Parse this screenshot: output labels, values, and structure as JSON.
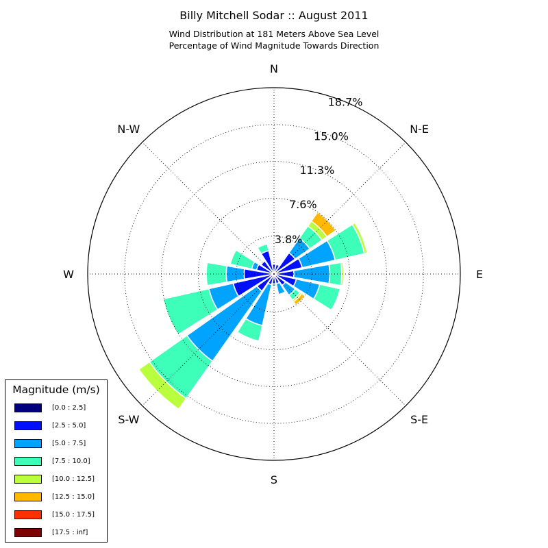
{
  "chart_data": {
    "type": "windrose",
    "title": "Billy Mitchell Sodar :: August 2011",
    "subtitle_lines": [
      "Wind Distribution at 181 Meters Above Sea Level",
      "Percentage of Wind Magnitude Towards Direction"
    ],
    "direction_labels": [
      "N",
      "N-E",
      "E",
      "S-E",
      "S",
      "S-W",
      "W",
      "N-W"
    ],
    "ring_labels": [
      "3.8%",
      "7.6%",
      "11.3%",
      "15.0%",
      "18.7%"
    ],
    "ring_values": [
      3.8,
      7.6,
      11.3,
      15.0,
      18.7
    ],
    "r_max": 18.7,
    "legend_title": "Magnitude (m/s)",
    "bins": [
      {
        "label": "[0.0 : 2.5]",
        "color": "#00007f"
      },
      {
        "label": "[2.5 : 5.0]",
        "color": "#0010ff"
      },
      {
        "label": "[5.0 : 7.5]",
        "color": "#00a4ff"
      },
      {
        "label": "[7.5 : 10.0]",
        "color": "#3dffb9"
      },
      {
        "label": "[10.0 : 12.5]",
        "color": "#b9ff3d"
      },
      {
        "label": "[12.5 : 15.0]",
        "color": "#ffb900"
      },
      {
        "label": "[15.0 : 17.5]",
        "color": "#ff3000"
      },
      {
        "label": "[17.5 : inf]",
        "color": "#7f0000"
      }
    ],
    "directions_deg": [
      0,
      22.5,
      45,
      67.5,
      90,
      112.5,
      135,
      157.5,
      180,
      202.5,
      225,
      247.5,
      270,
      292.5,
      315,
      337.5
    ],
    "cumulative_pct": [
      [
        0.15,
        1.0,
        1.0,
        1.05,
        1.05,
        1.05,
        1.05,
        1.05
      ],
      [
        0.3,
        1.0,
        1.0,
        1.05,
        1.05,
        1.05,
        1.05,
        1.05
      ],
      [
        0.3,
        2.6,
        4.4,
        5.9,
        6.5,
        7.6,
        7.6,
        7.6
      ],
      [
        0.3,
        2.9,
        6.3,
        9.3,
        9.6,
        9.6,
        9.6,
        9.6
      ],
      [
        0.3,
        2.0,
        5.6,
        6.8,
        7.0,
        7.0,
        7.0,
        7.0
      ],
      [
        0.3,
        2.3,
        4.7,
        6.8,
        6.8,
        6.8,
        6.8,
        6.8
      ],
      [
        0.3,
        1.4,
        2.6,
        3.2,
        3.4,
        3.8,
        3.8,
        3.8
      ],
      [
        0.3,
        1.0,
        2.1,
        2.1,
        2.1,
        2.1,
        2.1,
        2.1
      ],
      [
        0.3,
        1.0,
        1.2,
        1.2,
        1.2,
        1.2,
        1.2,
        1.2
      ],
      [
        0.3,
        1.1,
        5.3,
        6.9,
        6.9,
        6.9,
        6.9,
        6.9
      ],
      [
        0.3,
        2.1,
        10.7,
        15.3,
        16.6,
        16.6,
        16.6,
        16.6
      ],
      [
        0.3,
        4.2,
        6.7,
        11.4,
        11.4,
        11.4,
        11.4,
        11.4
      ],
      [
        0.3,
        3.0,
        4.8,
        6.8,
        6.8,
        6.8,
        6.8,
        6.8
      ],
      [
        0.3,
        1.8,
        2.3,
        4.5,
        4.5,
        4.5,
        4.5,
        4.5
      ],
      [
        0.3,
        1.6,
        1.6,
        1.6,
        1.6,
        1.6,
        1.6,
        1.6
      ],
      [
        0.3,
        2.4,
        2.4,
        3.1,
        3.1,
        3.1,
        3.1,
        3.1
      ]
    ]
  }
}
